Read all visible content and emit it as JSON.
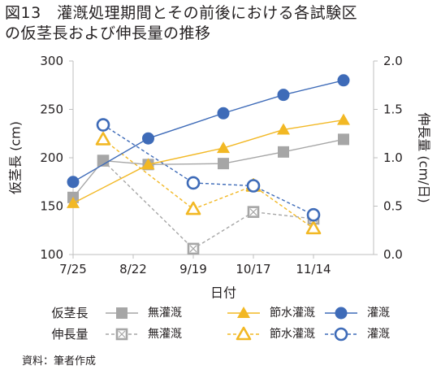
{
  "title": {
    "line1": "図13　灌漑処理期間とその前後における各試験区",
    "line2": "の仮茎長および伸長量の推移"
  },
  "source": "資料：筆者作成",
  "colors": {
    "gray": "#a6a6a6",
    "yellow": "#f2b824",
    "blue": "#3e6bb8",
    "axis": "#bfbfbf",
    "text": "#231f20"
  },
  "chart_data": {
    "type": "line",
    "xlabel": "日付",
    "ylabel_left": "仮茎長 (cm)",
    "ylabel_right": "伸長量 (cm/日)",
    "x_ticks": [
      "7/25",
      "8/22",
      "9/19",
      "10/17",
      "11/14"
    ],
    "y_left": {
      "range": [
        100,
        300
      ],
      "ticks": [
        "100",
        "150",
        "200",
        "250",
        "300"
      ]
    },
    "y_right": {
      "range": [
        0.0,
        2.0
      ],
      "ticks": [
        "0.0",
        "0.5",
        "1.0",
        "1.5",
        "2.0"
      ]
    },
    "grid": false,
    "legend_position": "bottom",
    "legend_groups": [
      {
        "label": "仮茎長",
        "items": [
          "無灌漑",
          "節水灌漑",
          "灌漑"
        ]
      },
      {
        "label": "伸長量",
        "items": [
          "無灌漑",
          "節水灌漑",
          "灌漑"
        ]
      }
    ],
    "series": [
      {
        "group": "仮茎長",
        "name": "無灌漑",
        "axis": "left",
        "style": "solid",
        "marker": "square",
        "color": "#a6a6a6",
        "x": [
          "7/25",
          "8/8",
          "8/29",
          "10/3",
          "10/31",
          "11/28"
        ],
        "values": [
          159,
          197,
          193,
          194,
          206,
          219
        ]
      },
      {
        "group": "仮茎長",
        "name": "節水灌漑",
        "axis": "left",
        "style": "solid",
        "marker": "triangle",
        "color": "#f2b824",
        "x": [
          "7/25",
          "8/29",
          "10/3",
          "10/31",
          "11/28"
        ],
        "values": [
          153,
          193,
          210,
          229,
          239
        ]
      },
      {
        "group": "仮茎長",
        "name": "灌漑",
        "axis": "left",
        "style": "solid",
        "marker": "circle",
        "color": "#3e6bb8",
        "x": [
          "7/25",
          "8/29",
          "10/3",
          "10/31",
          "11/28"
        ],
        "values": [
          175,
          220,
          246,
          265,
          280
        ]
      },
      {
        "group": "伸長量",
        "name": "無灌漑",
        "axis": "right",
        "style": "dashed",
        "marker": "square-x",
        "color": "#a6a6a6",
        "x": [
          "8/8",
          "9/19",
          "10/17",
          "11/14"
        ],
        "values": [
          0.97,
          0.06,
          0.44,
          0.37
        ]
      },
      {
        "group": "伸長量",
        "name": "節水灌漑",
        "axis": "right",
        "style": "dashed",
        "marker": "triangle-open",
        "color": "#f2b824",
        "x": [
          "8/8",
          "9/19",
          "10/17",
          "11/14"
        ],
        "values": [
          1.19,
          0.47,
          0.71,
          0.27
        ]
      },
      {
        "group": "伸長量",
        "name": "灌漑",
        "axis": "right",
        "style": "dashed",
        "marker": "circle-open",
        "color": "#3e6bb8",
        "x": [
          "8/8",
          "9/19",
          "10/17",
          "11/14"
        ],
        "values": [
          1.34,
          0.74,
          0.71,
          0.41
        ]
      }
    ]
  }
}
